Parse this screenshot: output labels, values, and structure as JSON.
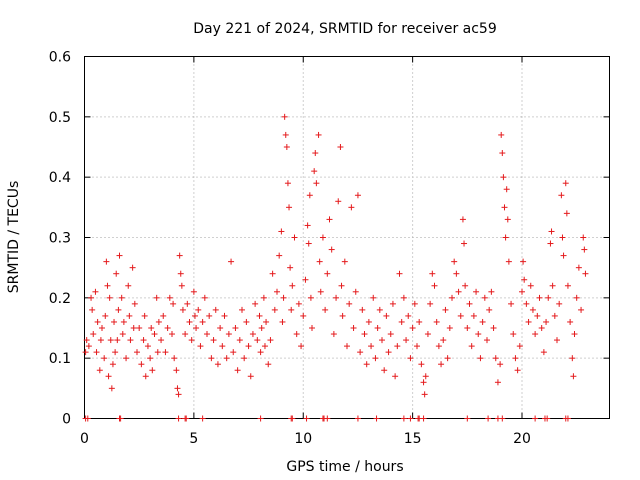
{
  "chart_data": {
    "type": "scatter",
    "title": "Day 221 of 2024, SRMTID for receiver ac59",
    "xlabel": "GPS time / hours",
    "ylabel": "SRMTID / TECUs",
    "xlim": [
      0,
      24
    ],
    "ylim": [
      0,
      0.6
    ],
    "xticks": [
      0,
      5,
      10,
      15,
      20
    ],
    "yticks": [
      0,
      0.1,
      0.2,
      0.3,
      0.4,
      0.5,
      0.6
    ],
    "xtick_labels": [
      "0",
      "5",
      "10",
      "15",
      "20"
    ],
    "ytick_labels": [
      "0",
      "0.1",
      "0.2",
      "0.3",
      "0.4",
      "0.5",
      "0.6"
    ],
    "grid": true,
    "marker": "+",
    "series": [
      {
        "name": "SRMTID",
        "color": "#e41a1c",
        "points": [
          [
            0.05,
            0.11
          ],
          [
            0.1,
            0.13
          ],
          [
            0.2,
            0.12
          ],
          [
            0.3,
            0.2
          ],
          [
            0.35,
            0.18
          ],
          [
            0.4,
            0.14
          ],
          [
            0.5,
            0.21
          ],
          [
            0.55,
            0.11
          ],
          [
            0.6,
            0.16
          ],
          [
            0.7,
            0.08
          ],
          [
            0.75,
            0.13
          ],
          [
            0.8,
            0.15
          ],
          [
            0.9,
            0.1
          ],
          [
            0.95,
            0.17
          ],
          [
            1.0,
            0.26
          ],
          [
            1.05,
            0.22
          ],
          [
            1.1,
            0.07
          ],
          [
            1.15,
            0.2
          ],
          [
            1.2,
            0.13
          ],
          [
            1.25,
            0.05
          ],
          [
            1.3,
            0.09
          ],
          [
            1.35,
            0.16
          ],
          [
            1.4,
            0.11
          ],
          [
            1.45,
            0.24
          ],
          [
            1.5,
            0.13
          ],
          [
            1.55,
            0.18
          ],
          [
            1.6,
            0.27
          ],
          [
            1.7,
            0.2
          ],
          [
            1.75,
            0.14
          ],
          [
            1.8,
            0.16
          ],
          [
            1.9,
            0.1
          ],
          [
            2.0,
            0.22
          ],
          [
            2.05,
            0.17
          ],
          [
            2.1,
            0.13
          ],
          [
            2.2,
            0.25
          ],
          [
            2.25,
            0.15
          ],
          [
            2.3,
            0.19
          ],
          [
            2.4,
            0.11
          ],
          [
            2.5,
            0.15
          ],
          [
            2.6,
            0.09
          ],
          [
            2.7,
            0.13
          ],
          [
            2.75,
            0.17
          ],
          [
            2.8,
            0.07
          ],
          [
            2.9,
            0.12
          ],
          [
            3.0,
            0.1
          ],
          [
            3.05,
            0.15
          ],
          [
            3.1,
            0.08
          ],
          [
            3.2,
            0.14
          ],
          [
            3.3,
            0.2
          ],
          [
            3.35,
            0.11
          ],
          [
            3.4,
            0.16
          ],
          [
            3.5,
            0.13
          ],
          [
            3.6,
            0.17
          ],
          [
            3.7,
            0.11
          ],
          [
            3.8,
            0.15
          ],
          [
            3.9,
            0.2
          ],
          [
            4.0,
            0.14
          ],
          [
            4.05,
            0.19
          ],
          [
            4.1,
            0.1
          ],
          [
            4.2,
            0.08
          ],
          [
            4.25,
            0.05
          ],
          [
            4.3,
            0.04
          ],
          [
            4.35,
            0.27
          ],
          [
            4.4,
            0.24
          ],
          [
            4.45,
            0.22
          ],
          [
            4.5,
            0.18
          ],
          [
            4.6,
            0.14
          ],
          [
            4.7,
            0.19
          ],
          [
            4.8,
            0.16
          ],
          [
            4.9,
            0.13
          ],
          [
            5.0,
            0.21
          ],
          [
            5.05,
            0.17
          ],
          [
            5.1,
            0.15
          ],
          [
            5.2,
            0.18
          ],
          [
            5.3,
            0.12
          ],
          [
            5.4,
            0.16
          ],
          [
            5.5,
            0.2
          ],
          [
            5.6,
            0.14
          ],
          [
            5.7,
            0.17
          ],
          [
            5.8,
            0.1
          ],
          [
            5.9,
            0.13
          ],
          [
            6.0,
            0.18
          ],
          [
            6.1,
            0.09
          ],
          [
            6.2,
            0.15
          ],
          [
            6.3,
            0.12
          ],
          [
            6.4,
            0.17
          ],
          [
            6.5,
            0.1
          ],
          [
            6.6,
            0.14
          ],
          [
            6.7,
            0.26
          ],
          [
            6.8,
            0.11
          ],
          [
            6.9,
            0.15
          ],
          [
            7.0,
            0.08
          ],
          [
            7.1,
            0.13
          ],
          [
            7.2,
            0.18
          ],
          [
            7.3,
            0.1
          ],
          [
            7.4,
            0.16
          ],
          [
            7.5,
            0.12
          ],
          [
            7.6,
            0.07
          ],
          [
            7.7,
            0.14
          ],
          [
            7.8,
            0.19
          ],
          [
            7.9,
            0.13
          ],
          [
            8.0,
            0.17
          ],
          [
            8.05,
            0.11
          ],
          [
            8.1,
            0.15
          ],
          [
            8.2,
            0.2
          ],
          [
            8.25,
            0.12
          ],
          [
            8.3,
            0.16
          ],
          [
            8.4,
            0.09
          ],
          [
            8.5,
            0.13
          ],
          [
            8.6,
            0.24
          ],
          [
            8.7,
            0.18
          ],
          [
            8.8,
            0.21
          ],
          [
            8.9,
            0.27
          ],
          [
            9.0,
            0.31
          ],
          [
            9.05,
            0.16
          ],
          [
            9.1,
            0.2
          ],
          [
            9.15,
            0.5
          ],
          [
            9.2,
            0.47
          ],
          [
            9.25,
            0.45
          ],
          [
            9.3,
            0.39
          ],
          [
            9.35,
            0.35
          ],
          [
            9.4,
            0.25
          ],
          [
            9.45,
            0.18
          ],
          [
            9.5,
            0.22
          ],
          [
            9.6,
            0.3
          ],
          [
            9.7,
            0.14
          ],
          [
            9.8,
            0.19
          ],
          [
            9.9,
            0.12
          ],
          [
            10.0,
            0.17
          ],
          [
            10.1,
            0.23
          ],
          [
            10.2,
            0.32
          ],
          [
            10.25,
            0.29
          ],
          [
            10.3,
            0.37
          ],
          [
            10.35,
            0.2
          ],
          [
            10.4,
            0.15
          ],
          [
            10.5,
            0.41
          ],
          [
            10.55,
            0.44
          ],
          [
            10.6,
            0.39
          ],
          [
            10.7,
            0.47
          ],
          [
            10.75,
            0.26
          ],
          [
            10.8,
            0.21
          ],
          [
            10.9,
            0.3
          ],
          [
            11.0,
            0.18
          ],
          [
            11.1,
            0.24
          ],
          [
            11.2,
            0.33
          ],
          [
            11.3,
            0.28
          ],
          [
            11.4,
            0.14
          ],
          [
            11.5,
            0.2
          ],
          [
            11.6,
            0.36
          ],
          [
            11.7,
            0.45
          ],
          [
            11.75,
            0.22
          ],
          [
            11.8,
            0.17
          ],
          [
            11.9,
            0.26
          ],
          [
            12.0,
            0.12
          ],
          [
            12.1,
            0.19
          ],
          [
            12.2,
            0.35
          ],
          [
            12.3,
            0.15
          ],
          [
            12.4,
            0.21
          ],
          [
            12.5,
            0.37
          ],
          [
            12.6,
            0.11
          ],
          [
            12.7,
            0.18
          ],
          [
            12.8,
            0.14
          ],
          [
            12.9,
            0.09
          ],
          [
            13.0,
            0.16
          ],
          [
            13.1,
            0.12
          ],
          [
            13.2,
            0.2
          ],
          [
            13.3,
            0.1
          ],
          [
            13.4,
            0.15
          ],
          [
            13.5,
            0.18
          ],
          [
            13.6,
            0.13
          ],
          [
            13.7,
            0.08
          ],
          [
            13.8,
            0.17
          ],
          [
            13.9,
            0.11
          ],
          [
            14.0,
            0.14
          ],
          [
            14.1,
            0.19
          ],
          [
            14.2,
            0.07
          ],
          [
            14.3,
            0.12
          ],
          [
            14.4,
            0.24
          ],
          [
            14.5,
            0.16
          ],
          [
            14.6,
            0.2
          ],
          [
            14.7,
            0.13
          ],
          [
            14.8,
            0.17
          ],
          [
            14.9,
            0.1
          ],
          [
            15.0,
            0.15
          ],
          [
            15.1,
            0.19
          ],
          [
            15.2,
            0.12
          ],
          [
            15.3,
            0.16
          ],
          [
            15.4,
            0.09
          ],
          [
            15.5,
            0.06
          ],
          [
            15.55,
            0.04
          ],
          [
            15.6,
            0.07
          ],
          [
            15.7,
            0.14
          ],
          [
            15.8,
            0.19
          ],
          [
            15.9,
            0.24
          ],
          [
            16.0,
            0.22
          ],
          [
            16.1,
            0.16
          ],
          [
            16.2,
            0.12
          ],
          [
            16.3,
            0.09
          ],
          [
            16.4,
            0.13
          ],
          [
            16.5,
            0.18
          ],
          [
            16.6,
            0.1
          ],
          [
            16.7,
            0.15
          ],
          [
            16.8,
            0.2
          ],
          [
            16.9,
            0.26
          ],
          [
            17.0,
            0.24
          ],
          [
            17.1,
            0.21
          ],
          [
            17.2,
            0.17
          ],
          [
            17.3,
            0.33
          ],
          [
            17.35,
            0.29
          ],
          [
            17.4,
            0.22
          ],
          [
            17.5,
            0.15
          ],
          [
            17.6,
            0.19
          ],
          [
            17.7,
            0.12
          ],
          [
            17.8,
            0.17
          ],
          [
            17.9,
            0.21
          ],
          [
            18.0,
            0.14
          ],
          [
            18.1,
            0.1
          ],
          [
            18.2,
            0.16
          ],
          [
            18.3,
            0.2
          ],
          [
            18.4,
            0.13
          ],
          [
            18.5,
            0.18
          ],
          [
            18.6,
            0.21
          ],
          [
            18.7,
            0.15
          ],
          [
            18.8,
            0.1
          ],
          [
            18.9,
            0.06
          ],
          [
            19.0,
            0.09
          ],
          [
            19.05,
            0.47
          ],
          [
            19.1,
            0.44
          ],
          [
            19.15,
            0.4
          ],
          [
            19.2,
            0.35
          ],
          [
            19.25,
            0.3
          ],
          [
            19.3,
            0.38
          ],
          [
            19.35,
            0.33
          ],
          [
            19.4,
            0.26
          ],
          [
            19.5,
            0.19
          ],
          [
            19.6,
            0.14
          ],
          [
            19.7,
            0.1
          ],
          [
            19.8,
            0.08
          ],
          [
            19.9,
            0.12
          ],
          [
            20.0,
            0.21
          ],
          [
            20.05,
            0.26
          ],
          [
            20.1,
            0.23
          ],
          [
            20.2,
            0.19
          ],
          [
            20.3,
            0.16
          ],
          [
            20.4,
            0.22
          ],
          [
            20.5,
            0.18
          ],
          [
            20.6,
            0.14
          ],
          [
            20.7,
            0.17
          ],
          [
            20.8,
            0.2
          ],
          [
            20.9,
            0.15
          ],
          [
            21.0,
            0.11
          ],
          [
            21.1,
            0.16
          ],
          [
            21.2,
            0.2
          ],
          [
            21.3,
            0.29
          ],
          [
            21.35,
            0.31
          ],
          [
            21.4,
            0.22
          ],
          [
            21.5,
            0.17
          ],
          [
            21.6,
            0.13
          ],
          [
            21.7,
            0.19
          ],
          [
            21.8,
            0.37
          ],
          [
            21.85,
            0.3
          ],
          [
            21.9,
            0.27
          ],
          [
            22.0,
            0.39
          ],
          [
            22.05,
            0.34
          ],
          [
            22.1,
            0.22
          ],
          [
            22.2,
            0.16
          ],
          [
            22.3,
            0.1
          ],
          [
            22.35,
            0.07
          ],
          [
            22.4,
            0.14
          ],
          [
            22.5,
            0.2
          ],
          [
            22.6,
            0.25
          ],
          [
            22.7,
            0.18
          ],
          [
            22.8,
            0.3
          ],
          [
            22.85,
            0.28
          ],
          [
            22.9,
            0.24
          ]
        ]
      }
    ],
    "zero_points_x": [
      0.05,
      0.15,
      1.6,
      1.65,
      4.3,
      4.6,
      4.65,
      5.4,
      8.05,
      9.45,
      9.5,
      10.15,
      10.9,
      10.95,
      11.1,
      12.5,
      13.35,
      14.6,
      14.9,
      15.25,
      15.3,
      15.5,
      17.5,
      18.45,
      18.9,
      19.1,
      20.6,
      21.05,
      21.15,
      22.0,
      22.1
    ]
  }
}
